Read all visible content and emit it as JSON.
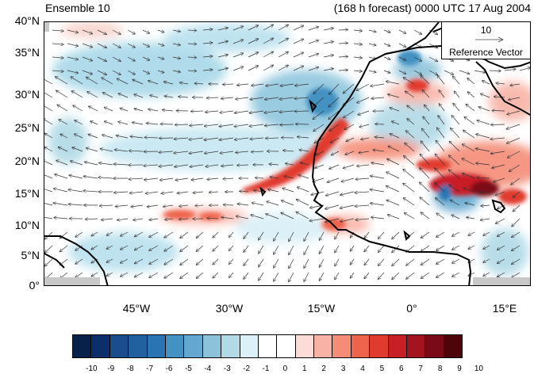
{
  "title_left": "Ensemble 10",
  "title_right": "(168 h forecast) 0000 UTC 17 Aug 2004",
  "reference": {
    "value": "10",
    "label": "Reference Vector"
  },
  "lat_labels": [
    "40°N",
    "35°N",
    "30°N",
    "25°N",
    "20°N",
    "15°N",
    "10°N",
    "5°N",
    "0°"
  ],
  "lon_labels": [
    "45°W",
    "30°W",
    "15°W",
    "0°",
    "15°E"
  ],
  "colorbar": {
    "labels": [
      "-10",
      "-9",
      "-8",
      "-7",
      "-6",
      "-5",
      "-4",
      "-3",
      "-2",
      "-1",
      "0",
      "1",
      "2",
      "3",
      "4",
      "5",
      "6",
      "7",
      "8",
      "9",
      "10"
    ],
    "colors": [
      "#08214a",
      "#0c2f6b",
      "#1a4d8c",
      "#21619f",
      "#2b74b3",
      "#4392c3",
      "#65a8cf",
      "#8dc3da",
      "#b1dae7",
      "#dcf0f8",
      "#ffffff",
      "#ffffff",
      "#fddbd7",
      "#f8b3a6",
      "#f48c76",
      "#ee634c",
      "#e03b2f",
      "#c81e25",
      "#a3141f",
      "#7a0a17",
      "#4e0509"
    ]
  }
}
